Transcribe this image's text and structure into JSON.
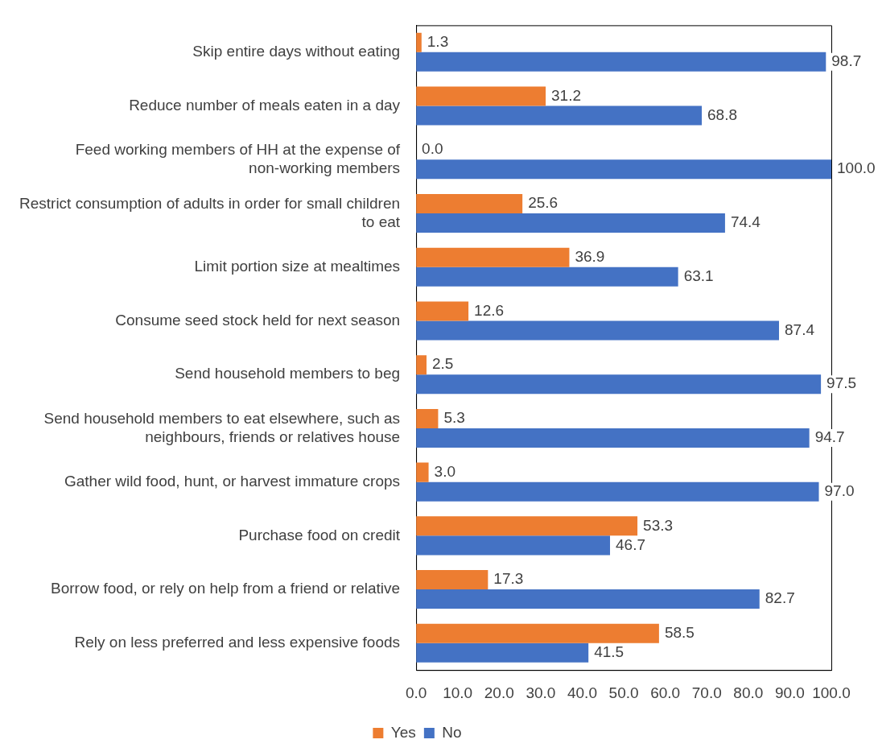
{
  "chart_data": {
    "type": "bar",
    "orientation": "horizontal",
    "categories": [
      "Skip entire days without eating",
      "Reduce number of meals eaten in a day",
      "Feed working members of HH at the expense of non-working members",
      "Restrict consumption of adults in order for small children to eat",
      "Limit portion size at mealtimes",
      "Consume seed stock held for next season",
      "Send household members to beg",
      "Send household members to eat elsewhere, such as neighbours, friends or relatives house",
      "Gather wild food, hunt, or harvest immature crops",
      "Purchase food on credit",
      "Borrow food, or rely on help from a friend or relative",
      "Rely on less preferred and less expensive foods"
    ],
    "series": [
      {
        "name": "Yes",
        "color": "#ed7d31",
        "values": [
          1.3,
          31.2,
          0,
          25.6,
          36.9,
          12.6,
          2.5,
          5.3,
          3.0,
          53.3,
          17.3,
          58.5
        ],
        "value_labels": [
          "1.3",
          "31.2",
          "0.0",
          "25.6",
          "36.9",
          "12.6",
          "2.5",
          "5.3",
          "3.0",
          "53.3",
          "17.3",
          "58.5"
        ]
      },
      {
        "name": "No",
        "color": "#4472c4",
        "values": [
          98.7,
          68.8,
          100,
          74.4,
          63.1,
          87.4,
          97.5,
          94.7,
          97.0,
          46.7,
          82.7,
          41.5
        ],
        "value_labels": [
          "98.7",
          "68.8",
          "100.0",
          "74.4",
          "63.1",
          "87.4",
          "97.5",
          "94.7",
          "97.0",
          "46.7",
          "82.7",
          "41.5"
        ]
      }
    ],
    "xlim": [
      0,
      100
    ],
    "xticks": [
      {
        "value": 0,
        "label": "0.0"
      },
      {
        "value": 10,
        "label": "10.0"
      },
      {
        "value": 20,
        "label": "20.0"
      },
      {
        "value": 30,
        "label": "30.0"
      },
      {
        "value": 40,
        "label": "40.0"
      },
      {
        "value": 50,
        "label": "50.0"
      },
      {
        "value": 60,
        "label": "60.0"
      },
      {
        "value": 70,
        "label": "70.0"
      },
      {
        "value": 80,
        "label": "80.0"
      },
      {
        "value": 90,
        "label": "90.0"
      },
      {
        "value": 100,
        "label": "100.0"
      }
    ],
    "grid": false,
    "legend": "bottom"
  }
}
